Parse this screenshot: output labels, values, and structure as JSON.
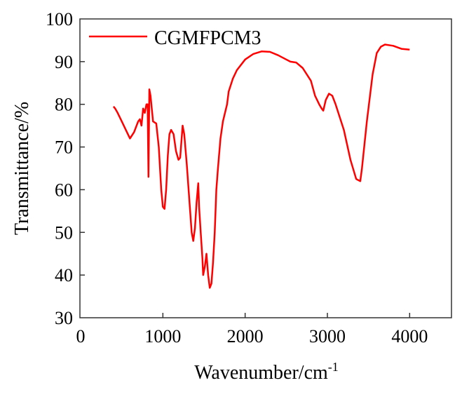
{
  "chart_data": {
    "type": "line",
    "title": "",
    "xlabel": "Wavenumber/cm",
    "xlabel_superscript": "-1",
    "ylabel": "Transmittance/%",
    "xlim": [
      0,
      4500
    ],
    "ylim": [
      30,
      100
    ],
    "xticks": [
      0,
      1000,
      2000,
      3000,
      4000
    ],
    "yticks": [
      30,
      40,
      50,
      60,
      70,
      80,
      90,
      100
    ],
    "grid": false,
    "legend": "top-left",
    "series": [
      {
        "name": "CGMFPCM3",
        "color": "#ff0000",
        "points": [
          [
            400,
            79.5
          ],
          [
            420,
            79
          ],
          [
            450,
            78
          ],
          [
            500,
            76
          ],
          [
            550,
            74
          ],
          [
            600,
            72
          ],
          [
            650,
            73.5
          ],
          [
            700,
            76
          ],
          [
            720,
            76.5
          ],
          [
            740,
            75
          ],
          [
            760,
            79
          ],
          [
            780,
            78
          ],
          [
            800,
            80
          ],
          [
            815,
            80
          ],
          [
            825,
            63
          ],
          [
            835,
            83.5
          ],
          [
            850,
            82
          ],
          [
            870,
            78
          ],
          [
            880,
            76
          ],
          [
            920,
            75.5
          ],
          [
            950,
            70
          ],
          [
            980,
            60
          ],
          [
            1000,
            56
          ],
          [
            1020,
            55.5
          ],
          [
            1040,
            60
          ],
          [
            1060,
            68
          ],
          [
            1080,
            73
          ],
          [
            1100,
            74
          ],
          [
            1130,
            73
          ],
          [
            1160,
            69
          ],
          [
            1190,
            67
          ],
          [
            1210,
            67.5
          ],
          [
            1240,
            75
          ],
          [
            1260,
            73
          ],
          [
            1290,
            66
          ],
          [
            1320,
            58
          ],
          [
            1350,
            50
          ],
          [
            1370,
            48
          ],
          [
            1390,
            51
          ],
          [
            1410,
            57
          ],
          [
            1430,
            61.5
          ],
          [
            1440,
            56
          ],
          [
            1460,
            50
          ],
          [
            1480,
            44
          ],
          [
            1490,
            40
          ],
          [
            1510,
            42
          ],
          [
            1530,
            45
          ],
          [
            1550,
            40
          ],
          [
            1570,
            37
          ],
          [
            1590,
            38
          ],
          [
            1610,
            43
          ],
          [
            1630,
            50
          ],
          [
            1650,
            60
          ],
          [
            1670,
            65
          ],
          [
            1700,
            72
          ],
          [
            1730,
            76
          ],
          [
            1780,
            80
          ],
          [
            1800,
            83
          ],
          [
            1850,
            86
          ],
          [
            1900,
            88
          ],
          [
            2000,
            90.5
          ],
          [
            2100,
            91.8
          ],
          [
            2200,
            92.4
          ],
          [
            2300,
            92.3
          ],
          [
            2400,
            91.5
          ],
          [
            2500,
            90.5
          ],
          [
            2550,
            90
          ],
          [
            2620,
            89.8
          ],
          [
            2700,
            88.5
          ],
          [
            2800,
            85.5
          ],
          [
            2850,
            82
          ],
          [
            2900,
            80
          ],
          [
            2930,
            79
          ],
          [
            2950,
            78.5
          ],
          [
            2980,
            81
          ],
          [
            3020,
            82.5
          ],
          [
            3060,
            82
          ],
          [
            3100,
            80
          ],
          [
            3200,
            74
          ],
          [
            3280,
            67
          ],
          [
            3350,
            62.5
          ],
          [
            3400,
            62
          ],
          [
            3420,
            65
          ],
          [
            3480,
            76
          ],
          [
            3550,
            87
          ],
          [
            3600,
            92
          ],
          [
            3650,
            93.5
          ],
          [
            3700,
            94
          ],
          [
            3800,
            93.7
          ],
          [
            3900,
            93
          ],
          [
            4000,
            92.8
          ]
        ]
      }
    ]
  }
}
